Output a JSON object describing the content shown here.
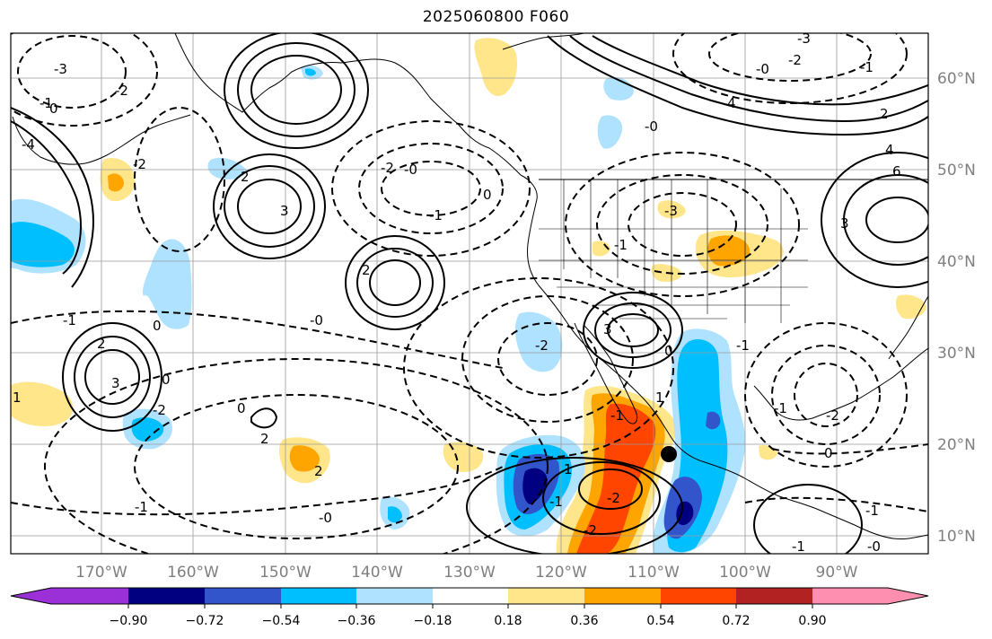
{
  "title": "2025060800 F060",
  "map": {
    "projection": "PlateCarree",
    "lon_range": [
      -180,
      -80
    ],
    "lat_range": [
      8,
      65
    ],
    "lon_ticks": [
      "170°W",
      "160°W",
      "150°W",
      "140°W",
      "130°W",
      "120°W",
      "110°W",
      "100°W",
      "90°W"
    ],
    "lat_ticks": [
      "60°N",
      "50°N",
      "40°N",
      "30°N",
      "20°N",
      "10°N"
    ],
    "gridlines": true,
    "marker": {
      "type": "black-dot",
      "lon": -108,
      "lat": 19
    }
  },
  "colorbar": {
    "orientation": "horizontal",
    "extend": "both",
    "tick_labels": [
      "−0.90",
      "−0.72",
      "−0.54",
      "−0.36",
      "−0.18",
      "0.18",
      "0.36",
      "0.54",
      "0.72",
      "0.90"
    ],
    "colors": [
      "#9b30d9",
      "#000080",
      "#3355cc",
      "#00bfff",
      "#aee2ff",
      "#ffffff",
      "#ffe68a",
      "#ffa500",
      "#ff4500",
      "#b22222",
      "#ff8fb0"
    ]
  },
  "contour_labels": {
    "north_pacific": [
      "-3",
      "-2",
      "-1",
      "0",
      "-4",
      "2",
      "3",
      "-2",
      "-1",
      "0"
    ],
    "central_pacific": [
      "2",
      "3",
      "2",
      "-0",
      "-1",
      "0"
    ],
    "western_us": [
      "-0",
      "-2",
      "-2",
      "-1",
      "-1",
      "-3",
      "-2",
      "-1"
    ],
    "canada": [
      "-3",
      "-2",
      "-1",
      "-0",
      "4",
      "-0",
      "2",
      "4",
      "6",
      "3"
    ],
    "tropics": [
      "-1",
      "0",
      "3",
      "-0",
      "-1",
      "1",
      "0",
      "-2",
      "-1",
      "0",
      "1",
      "2",
      "-0",
      "-2",
      "-1",
      "0",
      "-2",
      "1",
      "2",
      "-1"
    ]
  }
}
